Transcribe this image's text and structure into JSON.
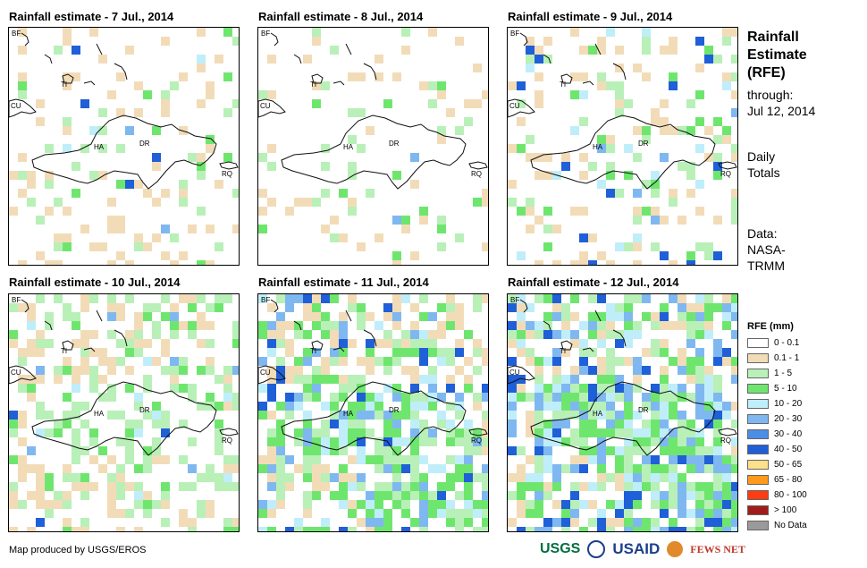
{
  "side": {
    "title": "Rainfall\nEstimate\n(RFE)",
    "title_lines": [
      "Rainfall",
      "Estimate",
      "(RFE)"
    ],
    "through_label": "through:",
    "through_date": "Jul 12, 2014",
    "daily_lines": [
      "Daily",
      "Totals"
    ],
    "data_lines": [
      "Data:",
      "NASA-",
      "TRMM"
    ]
  },
  "panels": [
    {
      "title": "Rainfall estimate - 7 Jul., 2014"
    },
    {
      "title": "Rainfall estimate - 8 Jul., 2014"
    },
    {
      "title": "Rainfall estimate - 9 Jul., 2014"
    },
    {
      "title": "Rainfall estimate - 10 Jul., 2014"
    },
    {
      "title": "Rainfall estimate - 11 Jul., 2014"
    },
    {
      "title": "Rainfall estimate - 12 Jul., 2014"
    }
  ],
  "map_labels": {
    "bf": "BF",
    "cu": "CU",
    "ha": "HA",
    "dr": "DR",
    "rq": "RQ",
    "ti": "TI"
  },
  "legend": {
    "title": "RFE (mm)",
    "items": [
      {
        "label": "0 - 0.1",
        "color": "#ffffff"
      },
      {
        "label": "0.1 - 1",
        "color": "#f2dcb8"
      },
      {
        "label": "1 - 5",
        "color": "#b8f0b8"
      },
      {
        "label": "5 - 10",
        "color": "#6ee66e"
      },
      {
        "label": "10 - 20",
        "color": "#bfeefa"
      },
      {
        "label": "20 - 30",
        "color": "#7fb8f0"
      },
      {
        "label": "30 - 40",
        "color": "#4a8ee6"
      },
      {
        "label": "40 - 50",
        "color": "#1f5fd8"
      },
      {
        "label": "50 - 65",
        "color": "#ffe08a"
      },
      {
        "label": "65 - 80",
        "color": "#ff9a1a"
      },
      {
        "label": "80 - 100",
        "color": "#ff3b12"
      },
      {
        "label": "> 100",
        "color": "#a01c1c"
      },
      {
        "label": "No Data",
        "color": "#9a9a9a"
      }
    ]
  },
  "footer": {
    "credit": "Map produced by USGS/EROS"
  },
  "logos": {
    "usgs": "USGS",
    "usaid": "USAID",
    "fews": "FEWS NET"
  }
}
